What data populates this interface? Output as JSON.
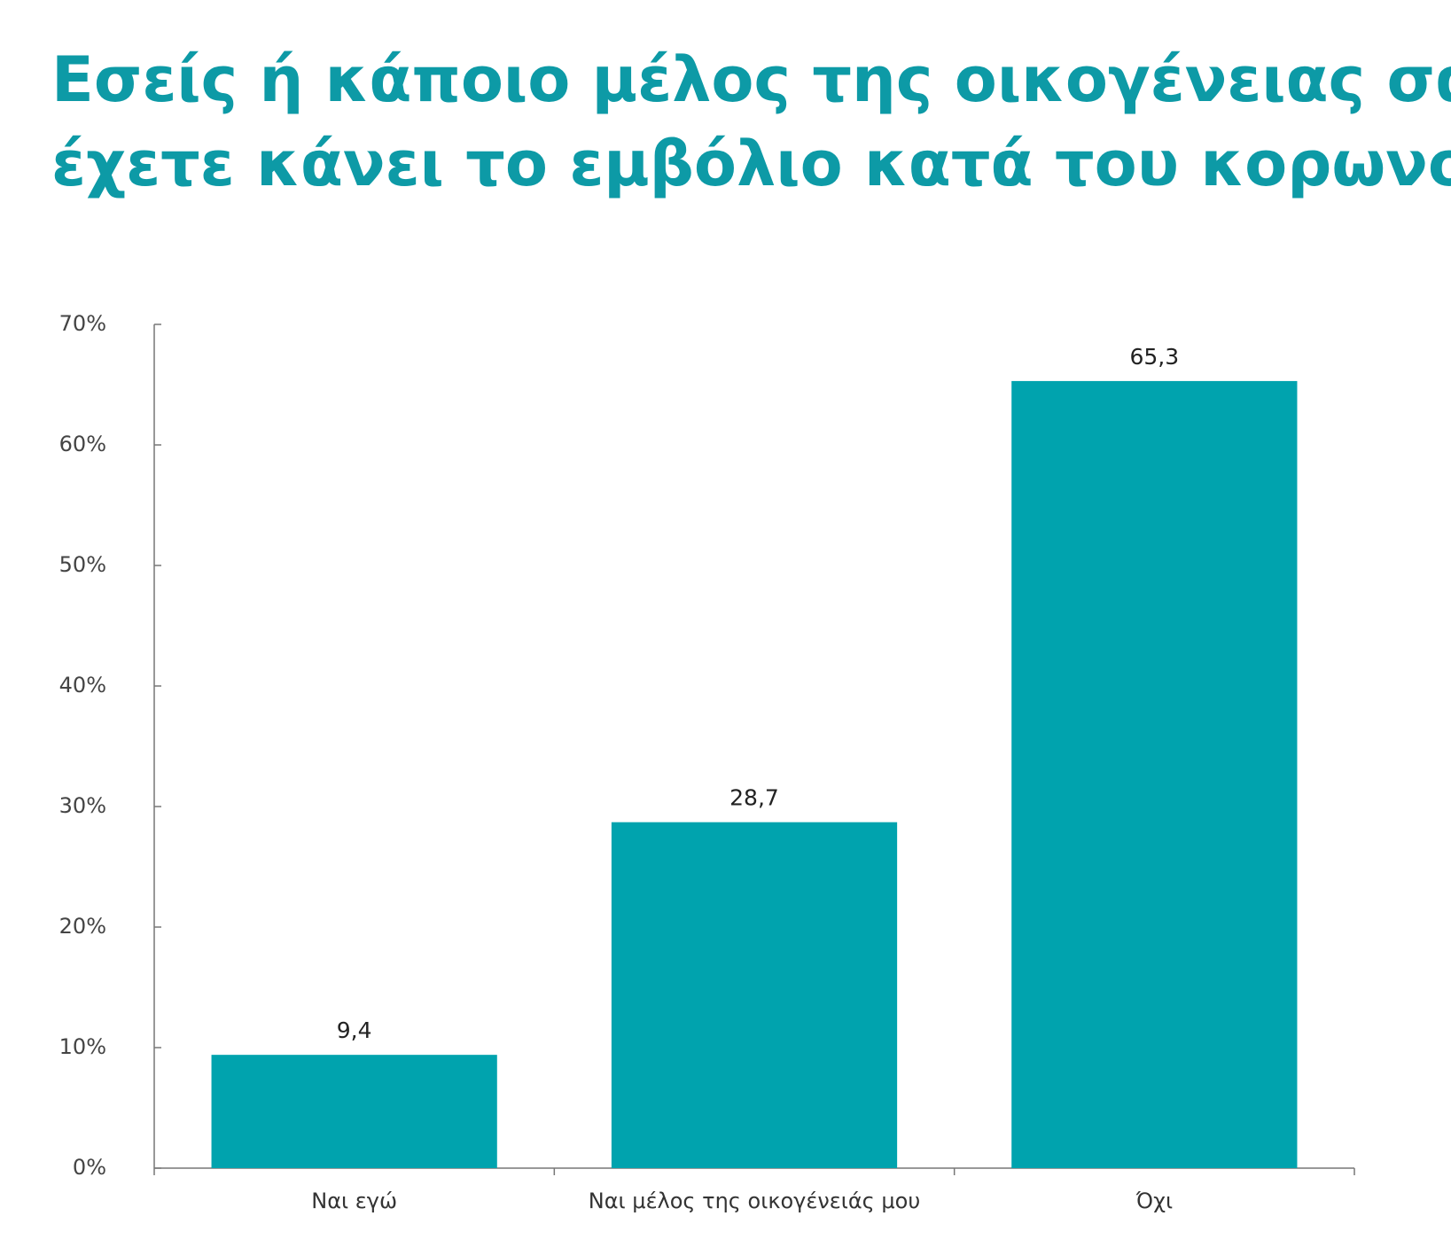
{
  "chart_data": {
    "type": "bar",
    "title_lines": [
      "Εσείς ή κάποιο μέλος της οικογένειας σας",
      "έχετε κάνει το εμβόλιο κατά του κορωνοϊού;"
    ],
    "categories": [
      "Ναι εγώ",
      "Ναι μέλος της οικογένειάς μου",
      "Όχι"
    ],
    "values": [
      9.4,
      28.7,
      65.3
    ],
    "value_labels": [
      "9,4",
      "28,7",
      "65,3"
    ],
    "color": "#00a3ae",
    "ylim": [
      0,
      70
    ],
    "yticks": [
      {
        "value": 0,
        "label": "0%"
      },
      {
        "value": 10,
        "label": "10%"
      },
      {
        "value": 20,
        "label": "20%"
      },
      {
        "value": 30,
        "label": "30%"
      },
      {
        "value": 40,
        "label": "40%"
      },
      {
        "value": 50,
        "label": "50%"
      },
      {
        "value": 60,
        "label": "60%"
      },
      {
        "value": 70,
        "label": "70%"
      }
    ],
    "grid": false
  }
}
